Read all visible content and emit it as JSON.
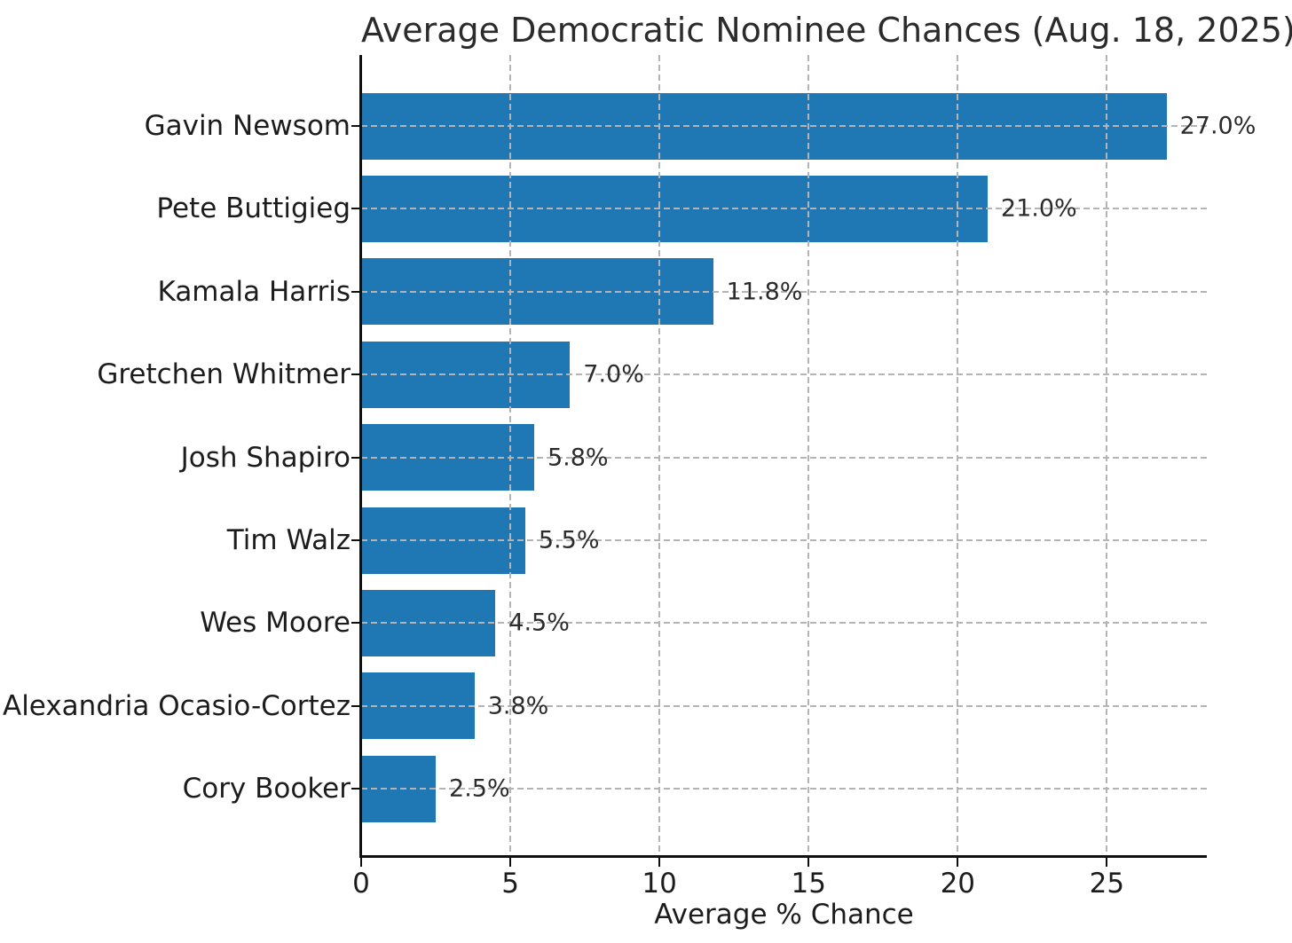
{
  "chart_data": {
    "type": "bar",
    "orientation": "horizontal",
    "title": "Average Democratic Nominee Chances (Aug. 18, 2025)",
    "xlabel": "Average % Chance",
    "ylabel": "",
    "categories": [
      "Gavin Newsom",
      "Pete Buttigieg",
      "Kamala Harris",
      "Gretchen Whitmer",
      "Josh Shapiro",
      "Tim Walz",
      "Wes Moore",
      "Alexandria Ocasio-Cortez",
      "Cory Booker"
    ],
    "values": [
      27.0,
      21.0,
      11.8,
      7.0,
      5.8,
      5.5,
      4.5,
      3.8,
      2.5
    ],
    "value_labels": [
      "27.0%",
      "21.0%",
      "11.8%",
      "7.0%",
      "5.8%",
      "5.5%",
      "4.5%",
      "3.8%",
      "2.5%"
    ],
    "x_ticks": [
      0,
      5,
      10,
      15,
      20,
      25
    ],
    "xlim": [
      0,
      28.35
    ],
    "grid": "dashed, both axes, drawn over bars",
    "legend": "none",
    "bar_color": "#1f77b4",
    "grid_color": "#b4b4b4",
    "spine_color": "#0f0f0f",
    "text_color": "#1c1c1c"
  }
}
